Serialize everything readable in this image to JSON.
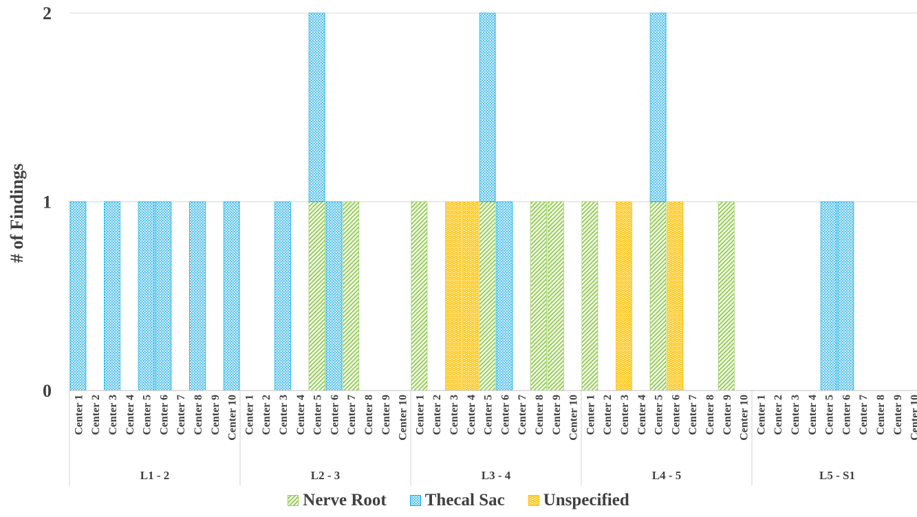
{
  "chart_data": {
    "type": "bar",
    "stacked": true,
    "ylabel": "# of Findings",
    "ylim": [
      0,
      2
    ],
    "yticks": [
      "0",
      "1",
      "2"
    ],
    "grid": true,
    "legend_position": "bottom",
    "groups": [
      "L1 - 2",
      "L2 - 3",
      "L3 - 4",
      "L4 - 5",
      "L5 - S1"
    ],
    "centers": [
      "Center 1",
      "Center 2",
      "Center 3",
      "Center 4",
      "Center 5",
      "Center 6",
      "Center 7",
      "Center 8",
      "Center 9",
      "Center 10"
    ],
    "series": [
      {
        "name": "Nerve Root",
        "color": "#92d050",
        "pattern": "diagonal-hatch",
        "values": [
          0,
          0,
          0,
          0,
          0,
          0,
          0,
          0,
          0,
          0,
          0,
          0,
          0,
          0,
          1,
          0,
          1,
          0,
          0,
          0,
          1,
          0,
          0,
          0,
          1,
          0,
          0,
          1,
          1,
          0,
          1,
          0,
          0,
          0,
          1,
          0,
          0,
          0,
          1,
          0,
          0,
          0,
          0,
          0,
          0,
          0,
          0,
          0,
          0,
          0
        ]
      },
      {
        "name": "Thecal Sac",
        "color": "#00b0f0",
        "pattern": "dots",
        "values": [
          1,
          0,
          1,
          0,
          1,
          1,
          0,
          1,
          0,
          1,
          0,
          0,
          1,
          0,
          1,
          1,
          0,
          0,
          0,
          0,
          0,
          0,
          0,
          0,
          1,
          1,
          0,
          0,
          0,
          0,
          0,
          0,
          0,
          0,
          1,
          0,
          0,
          0,
          0,
          0,
          0,
          0,
          0,
          0,
          1,
          1,
          0,
          0,
          0,
          0
        ]
      },
      {
        "name": "Unspecified",
        "color": "#ffc000",
        "pattern": "weave",
        "values": [
          0,
          0,
          0,
          0,
          0,
          0,
          0,
          0,
          0,
          0,
          0,
          0,
          0,
          0,
          0,
          0,
          0,
          0,
          0,
          0,
          0,
          0,
          1,
          1,
          0,
          0,
          0,
          0,
          0,
          0,
          0,
          0,
          1,
          0,
          0,
          1,
          0,
          0,
          0,
          0,
          0,
          0,
          0,
          0,
          0,
          0,
          0,
          0,
          0,
          0
        ]
      }
    ]
  }
}
